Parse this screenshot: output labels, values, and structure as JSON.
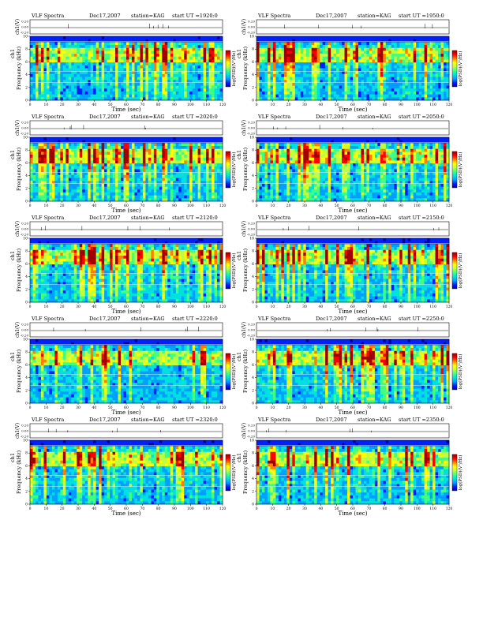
{
  "chart_data": {
    "type": "heatmap",
    "common": {
      "instrument": "VLF Spectra",
      "date": "Dec17,2007",
      "station": "station=KAG",
      "start_prefix": "start  UT =",
      "xlabel": "Time (sec)",
      "ylabel": "Frequency (kHz)",
      "ch_label": "ch1",
      "ch_axis_label": "ch1(V)",
      "colorbar_label": "log(PSD)(V²/Hz)",
      "x_ticks": [
        0,
        10,
        20,
        30,
        40,
        50,
        60,
        70,
        80,
        90,
        100,
        110,
        120
      ],
      "y_ticks": [
        0,
        2,
        4,
        6,
        8,
        10
      ],
      "xlim": [
        0,
        120
      ],
      "ylim": [
        0,
        10
      ],
      "ch_ticks": [
        "0.20",
        "0.00",
        "-0.20"
      ],
      "colorscale": [
        "#0000a0",
        "#0020ff",
        "#00a0ff",
        "#00e0e0",
        "#40ff80",
        "#c0ff40",
        "#ffff00",
        "#ff8000",
        "#ff0000",
        "#a00000"
      ]
    },
    "panels": [
      {
        "start_ut": "1920:0"
      },
      {
        "start_ut": "1950:0"
      },
      {
        "start_ut": "2020:0"
      },
      {
        "start_ut": "2050:0"
      },
      {
        "start_ut": "2120:0"
      },
      {
        "start_ut": "2150:0"
      },
      {
        "start_ut": "2220:0"
      },
      {
        "start_ut": "2250:0"
      },
      {
        "start_ut": "2320:0"
      },
      {
        "start_ut": "2350:0"
      }
    ]
  }
}
